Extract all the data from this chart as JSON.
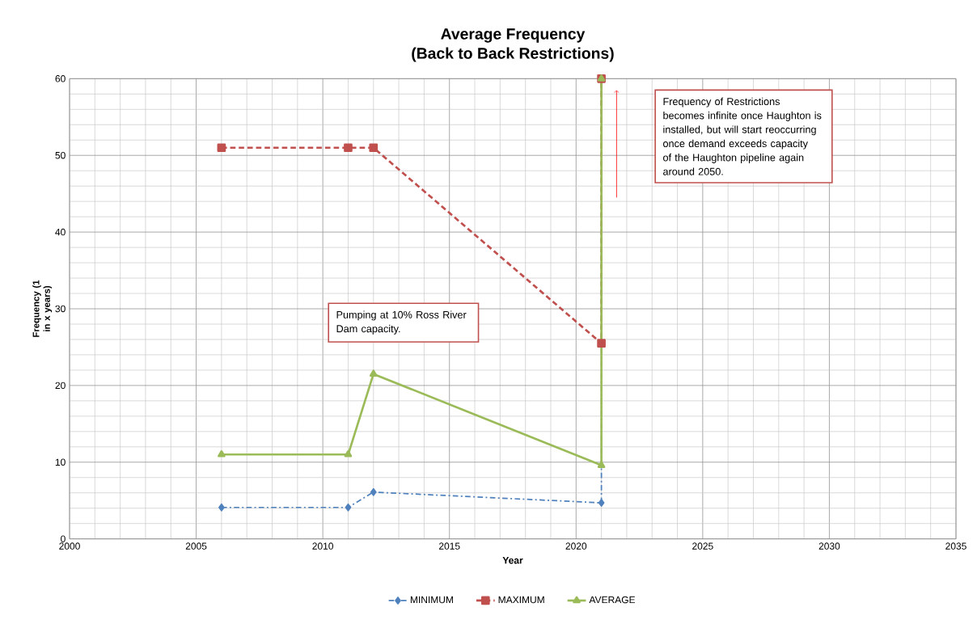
{
  "chart_data": {
    "type": "line",
    "title": "Average Frequency",
    "subtitle": "(Back to Back Restrictions)",
    "xlabel": "Year",
    "ylabel": "Frequency (1 in x years)",
    "xlim": [
      2000,
      2035
    ],
    "xticks": [
      2000,
      2005,
      2010,
      2015,
      2020,
      2025,
      2030,
      2035
    ],
    "ylim": [
      0,
      60
    ],
    "yticks": [
      0,
      10,
      20,
      30,
      40,
      50,
      60
    ],
    "grid": true,
    "legend": "bottom",
    "series": [
      {
        "name": "MINIMUM",
        "color": "#4f81bd",
        "line_style": "dashdot",
        "marker": "diamond",
        "x": [
          2006,
          2011,
          2012,
          2021,
          2021
        ],
        "values": [
          4.1,
          4.1,
          6.1,
          4.7,
          60
        ]
      },
      {
        "name": "MAXIMUM",
        "color": "#c0504d",
        "line_style": "dashed",
        "marker": "square",
        "x": [
          2006,
          2011,
          2012,
          2021,
          2021
        ],
        "values": [
          51,
          51,
          51,
          25.5,
          60
        ]
      },
      {
        "name": "AVERAGE",
        "color": "#9bbb59",
        "line_style": "solid",
        "marker": "triangle",
        "x": [
          2006,
          2011,
          2012,
          2021,
          2021
        ],
        "values": [
          11,
          11,
          21.5,
          9.6,
          60
        ]
      }
    ],
    "annotations": [
      "Pumping at 10% Ross River Dam capacity.",
      "Frequency of Restrictions becomes infinite once Haughton is installed, but will start reoccurring once demand exceeds capacity of the Haughton pipeline again around 2050."
    ]
  }
}
